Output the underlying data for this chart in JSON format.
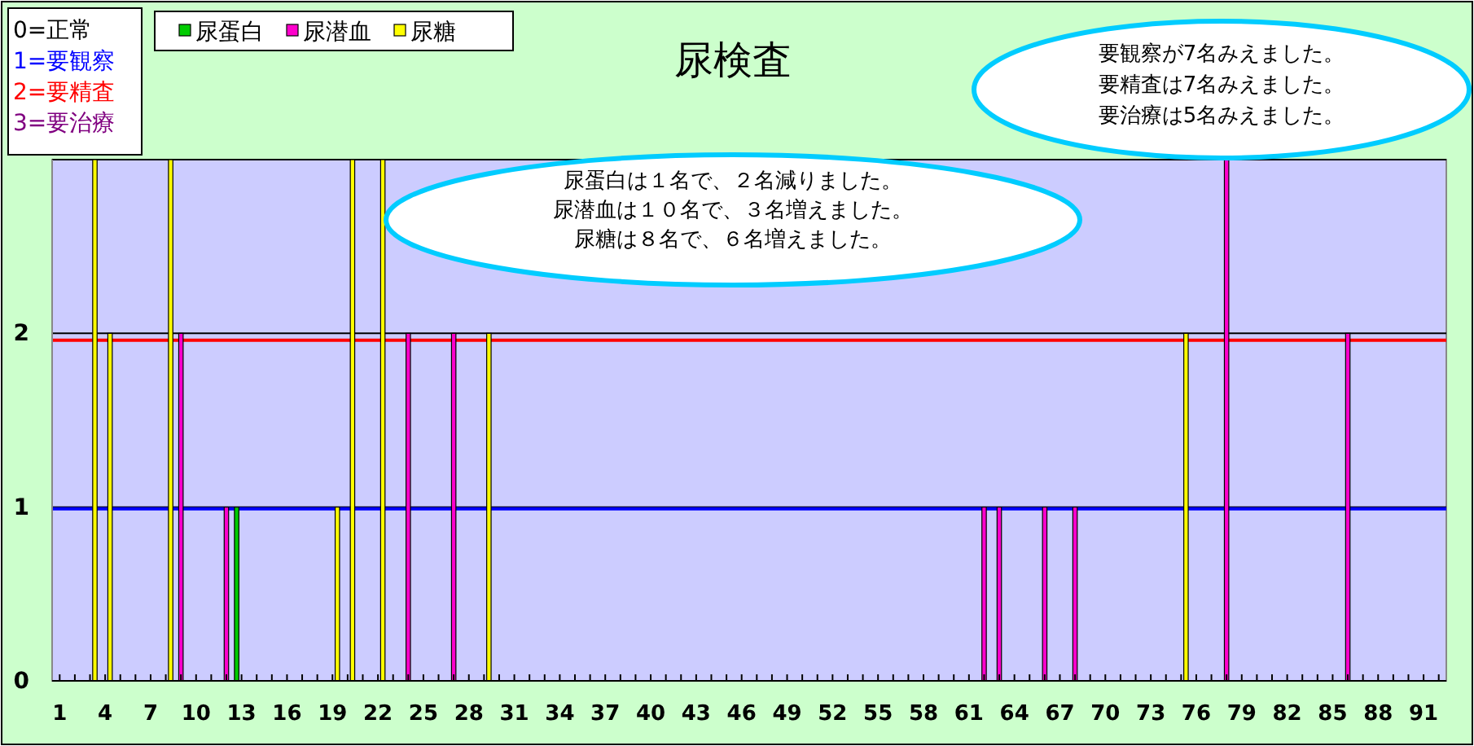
{
  "chart_data": {
    "type": "bar",
    "title": "尿検査",
    "categories": [
      "1",
      null,
      null,
      "4",
      null,
      null,
      "7",
      null,
      null,
      "10",
      null,
      null,
      "13",
      null,
      null,
      "16",
      null,
      null,
      "19",
      null,
      null,
      "22",
      null,
      null,
      "25",
      null,
      null,
      "28",
      null,
      null,
      "31",
      null,
      null,
      "34",
      null,
      null,
      "37",
      null,
      null,
      "40",
      null,
      null,
      "43",
      null,
      null,
      "46",
      null,
      null,
      "49",
      null,
      null,
      "52",
      null,
      null,
      "55",
      null,
      null,
      "58",
      null,
      null,
      "61",
      null,
      null,
      "64",
      null,
      null,
      "67",
      null,
      null,
      "70",
      null,
      null,
      "73",
      null,
      null,
      "76",
      null,
      null,
      "79",
      null,
      null,
      "82",
      null,
      null,
      "85",
      null,
      null,
      "88",
      null,
      null,
      "91",
      null
    ],
    "series": [
      {
        "name": "尿蛋白",
        "color": "#00cc00",
        "values": [
          0,
          0,
          0,
          0,
          0,
          0,
          0,
          0,
          0,
          0,
          0,
          0,
          1,
          0,
          0,
          0,
          0,
          0,
          0,
          0,
          0,
          0,
          0,
          0,
          0,
          0,
          0,
          0,
          0,
          0,
          0,
          0,
          0,
          0,
          0,
          0,
          0,
          0,
          0,
          0,
          0,
          0,
          0,
          0,
          0,
          0,
          0,
          0,
          0,
          0,
          0,
          0,
          0,
          0,
          0,
          0,
          0,
          0,
          0,
          0,
          0,
          0,
          0,
          0,
          0,
          0,
          0,
          0,
          0,
          0,
          0,
          0,
          0,
          0,
          0,
          0,
          0,
          0,
          0,
          0,
          0,
          0,
          0,
          0,
          0,
          0,
          0,
          0,
          0,
          0,
          0,
          0
        ]
      },
      {
        "name": "尿潜血",
        "color": "#ff00cc",
        "values": [
          0,
          0,
          0,
          0,
          0,
          0,
          0,
          0,
          2,
          0,
          0,
          1,
          0,
          0,
          0,
          0,
          0,
          0,
          0,
          0,
          0,
          0,
          0,
          2,
          0,
          0,
          2,
          0,
          0,
          0,
          0,
          0,
          0,
          0,
          0,
          0,
          0,
          0,
          0,
          0,
          0,
          0,
          0,
          0,
          0,
          0,
          0,
          0,
          0,
          0,
          0,
          0,
          0,
          0,
          0,
          0,
          0,
          0,
          0,
          0,
          0,
          1,
          1,
          0,
          0,
          1,
          0,
          1,
          0,
          0,
          0,
          0,
          0,
          0,
          0,
          0,
          0,
          3,
          0,
          0,
          0,
          0,
          0,
          0,
          0,
          2,
          0,
          0,
          0,
          0,
          0,
          0
        ]
      },
      {
        "name": "尿糖",
        "color": "#ffff00",
        "values": [
          0,
          0,
          3,
          2,
          0,
          0,
          0,
          3,
          0,
          0,
          0,
          0,
          0,
          0,
          0,
          0,
          0,
          0,
          1,
          3,
          0,
          3,
          0,
          0,
          0,
          0,
          0,
          0,
          2,
          0,
          0,
          0,
          0,
          0,
          0,
          0,
          0,
          0,
          0,
          0,
          0,
          0,
          0,
          0,
          0,
          0,
          0,
          0,
          0,
          0,
          0,
          0,
          0,
          0,
          0,
          0,
          0,
          0,
          0,
          0,
          0,
          0,
          0,
          0,
          0,
          0,
          0,
          0,
          0,
          0,
          0,
          0,
          0,
          0,
          2,
          0,
          0,
          0,
          0,
          0,
          0,
          0,
          0,
          0,
          0,
          0,
          0,
          0,
          0,
          0,
          0,
          0
        ]
      }
    ],
    "ylim": [
      0,
      3
    ],
    "yticks": [
      0,
      1,
      2,
      {
        "value": 3,
        "label": null
      }
    ],
    "grid": "y",
    "legend": "top left",
    "ref_lines": [
      {
        "axis": "y",
        "value": 0.99,
        "color": "#0000ff"
      },
      {
        "axis": "y",
        "value": 1.96,
        "color": "#ff0000"
      }
    ],
    "annotations": [
      "0=正常",
      "1=要観察",
      "2=要精査",
      "3=要治療",
      "尿蛋白は１名で、２名減りました。",
      "尿潜血は１０名で、３名増えました。",
      "尿糖は８名で、６名増えました。",
      "要観察が7名みえました。",
      "要精査は7名みえました。",
      "要治療は5名みえました。"
    ]
  }
}
